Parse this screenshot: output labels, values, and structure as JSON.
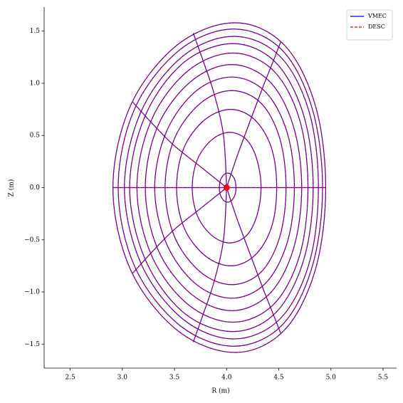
{
  "chart_data": {
    "type": "line",
    "xlabel": "R (m)",
    "ylabel": "Z (m)",
    "xlim": [
      2.25,
      5.63
    ],
    "ylim": [
      -1.73,
      1.73
    ],
    "xticks": [
      2.5,
      {
        "value": 3.0,
        "label": "3.0"
      },
      3.5,
      {
        "value": 4.0,
        "label": "4.0"
      },
      4.5,
      {
        "value": 5.0,
        "label": "5.0"
      },
      5.5
    ],
    "yticks": [
      {
        "value": -1.5,
        "label": "−1.5"
      },
      {
        "value": -1.0,
        "label": "−1.0"
      },
      {
        "value": -0.5,
        "label": "−0.5"
      },
      {
        "value": 0.0,
        "label": "0.0"
      },
      0.5,
      {
        "value": 1.0,
        "label": "1.0"
      },
      1.5
    ],
    "legend": "upper right",
    "series": [
      {
        "name": "VMEC",
        "color": "#0000ff",
        "dashed": false
      },
      {
        "name": "DESC",
        "color": "#ff0000",
        "dashed": true
      }
    ],
    "surfaces": [
      {
        "x": [
          4.09,
          4.08,
          4.05,
          4.01,
          3.97,
          3.94,
          3.93,
          3.94,
          3.97,
          4.01,
          4.05,
          4.08
        ],
        "y": [
          0,
          0.07,
          0.12,
          0.14,
          0.12,
          0.07,
          0,
          -0.07,
          -0.12,
          -0.14,
          -0.12,
          -0.07
        ]
      },
      {
        "x": [
          4.33,
          4.29,
          4.19,
          4.03,
          3.86,
          3.72,
          3.67,
          3.72,
          3.86,
          4.03,
          4.19,
          4.29
        ],
        "y": [
          0,
          0.27,
          0.46,
          0.53,
          0.46,
          0.27,
          0,
          -0.27,
          -0.46,
          -0.53,
          -0.46,
          -0.27
        ]
      },
      {
        "x": [
          4.48,
          4.43,
          4.27,
          4.04,
          3.79,
          3.59,
          3.52,
          3.59,
          3.79,
          4.04,
          4.27,
          4.43
        ],
        "y": [
          0,
          0.38,
          0.65,
          0.75,
          0.65,
          0.38,
          0,
          -0.38,
          -0.65,
          -0.75,
          -0.65,
          -0.38
        ]
      },
      {
        "x": [
          4.57,
          4.51,
          4.33,
          4.05,
          3.75,
          3.5,
          3.41,
          3.5,
          3.75,
          4.05,
          4.33,
          4.51
        ],
        "y": [
          0,
          0.47,
          0.81,
          0.93,
          0.81,
          0.47,
          0,
          -0.47,
          -0.81,
          -0.93,
          -0.81,
          -0.47
        ]
      },
      {
        "x": [
          4.65,
          4.58,
          4.37,
          4.05,
          3.7,
          3.42,
          3.31,
          3.42,
          3.7,
          4.05,
          4.37,
          4.58
        ],
        "y": [
          0,
          0.53,
          0.92,
          1.06,
          0.92,
          0.53,
          0,
          -0.53,
          -0.92,
          -1.06,
          -0.92,
          -0.53
        ]
      },
      {
        "x": [
          4.72,
          4.64,
          4.41,
          4.05,
          3.66,
          3.34,
          3.22,
          3.34,
          3.66,
          4.05,
          4.41,
          4.64
        ],
        "y": [
          0,
          0.59,
          1.02,
          1.18,
          1.02,
          0.59,
          0,
          -0.59,
          -1.02,
          -1.18,
          -1.02,
          -0.59
        ]
      },
      {
        "x": [
          4.78,
          4.7,
          4.45,
          4.06,
          3.63,
          3.28,
          3.14,
          3.28,
          3.63,
          4.06,
          4.45,
          4.7
        ],
        "y": [
          0,
          0.65,
          1.12,
          1.29,
          1.12,
          0.65,
          0,
          -0.65,
          -1.12,
          -1.29,
          -1.12,
          -0.65
        ]
      },
      {
        "x": [
          4.83,
          4.74,
          4.47,
          4.06,
          3.59,
          3.22,
          3.07,
          3.22,
          3.59,
          4.06,
          4.47,
          4.74
        ],
        "y": [
          0,
          0.69,
          1.2,
          1.38,
          1.2,
          0.69,
          0,
          -0.69,
          -1.2,
          -1.38,
          -1.2,
          -0.69
        ]
      },
      {
        "x": [
          4.88,
          4.79,
          4.51,
          4.07,
          3.58,
          3.18,
          3.02,
          3.18,
          3.58,
          4.07,
          4.51,
          4.79
        ],
        "y": [
          0,
          0.73,
          1.26,
          1.45,
          1.26,
          0.73,
          0,
          -0.73,
          -1.26,
          -1.45,
          -1.26,
          -0.73
        ]
      },
      {
        "x": [
          4.92,
          4.82,
          4.53,
          4.07,
          3.55,
          3.12,
          2.96,
          3.12,
          3.55,
          4.07,
          4.53,
          4.82
        ],
        "y": [
          0,
          0.76,
          1.32,
          1.52,
          1.32,
          0.76,
          0,
          -0.76,
          -1.32,
          -1.52,
          -1.32,
          -0.76
        ]
      },
      {
        "x": [
          4.95,
          4.85,
          4.55,
          4.08,
          3.53,
          3.08,
          2.91,
          3.08,
          3.53,
          4.08,
          4.55,
          4.85
        ],
        "y": [
          0,
          0.79,
          1.37,
          1.58,
          1.37,
          0.79,
          0,
          -0.79,
          -1.37,
          -1.58,
          -1.37,
          -0.79
        ]
      }
    ],
    "rays": [
      {
        "x": [
          2.91,
          4.95
        ],
        "y": [
          0,
          0
        ]
      },
      {
        "x": [
          4.0,
          4.1,
          4.23,
          4.35,
          4.45,
          4.52
        ],
        "y": [
          0,
          0.3,
          0.65,
          0.97,
          1.22,
          1.4
        ]
      },
      {
        "x": [
          4.0,
          3.97,
          3.88,
          3.78,
          3.68
        ],
        "y": [
          0,
          0.5,
          0.9,
          1.2,
          1.48
        ]
      },
      {
        "x": [
          4.0,
          3.75,
          3.5,
          3.3,
          3.1
        ],
        "y": [
          0,
          0.2,
          0.4,
          0.6,
          0.82
        ]
      },
      {
        "x": [
          4.0,
          4.1,
          4.23,
          4.35,
          4.45,
          4.52
        ],
        "y": [
          0,
          -0.3,
          -0.65,
          -0.97,
          -1.22,
          -1.4
        ]
      },
      {
        "x": [
          4.0,
          3.97,
          3.88,
          3.78,
          3.68
        ],
        "y": [
          0,
          -0.5,
          -0.9,
          -1.2,
          -1.48
        ]
      },
      {
        "x": [
          4.0,
          3.75,
          3.5,
          3.3,
          3.1
        ],
        "y": [
          0,
          -0.2,
          -0.4,
          -0.6,
          -0.82
        ]
      }
    ],
    "axis_point": {
      "x": 4.0,
      "y": 0,
      "color": "#ff0000"
    }
  }
}
